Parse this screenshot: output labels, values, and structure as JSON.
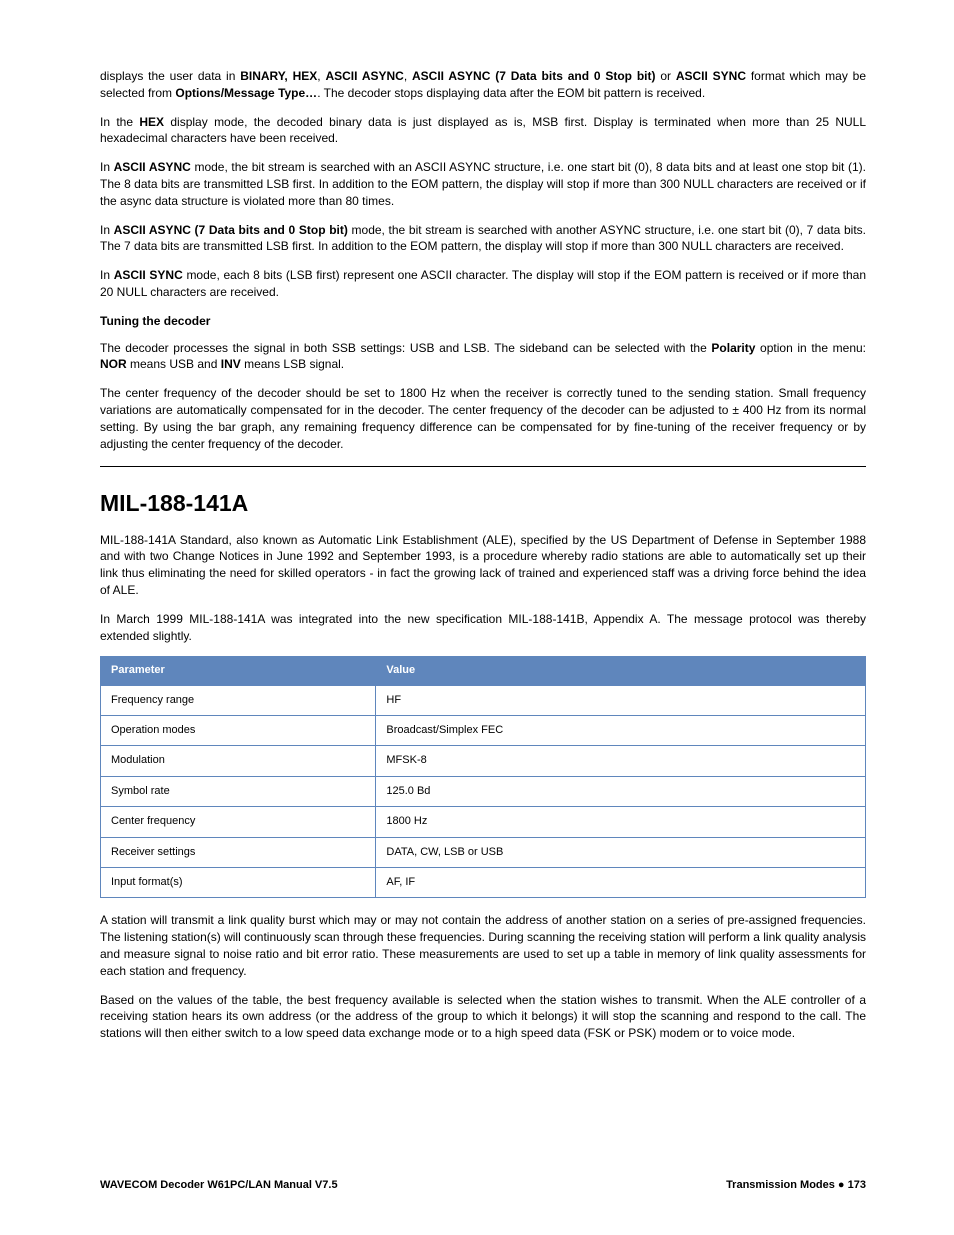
{
  "p1_pre": "displays the user data in ",
  "p1_b1": "BINARY, HEX",
  "p1_m1": ", ",
  "p1_b2": "ASCII ASYNC",
  "p1_m2": ", ",
  "p1_b3": "ASCII ASYNC (7 Data bits and 0 Stop bit)",
  "p1_m3": " or ",
  "p1_b4": "ASCII SYNC",
  "p1_m4": " format which may be selected from ",
  "p1_b5": "Options/Message Type…",
  "p1_post": ". The decoder stops displaying data after the EOM bit pattern is received.",
  "p2_pre": "In the ",
  "p2_b1": "HEX",
  "p2_post": " display mode, the decoded binary data is just displayed as is, MSB first. Display is terminated when more than 25 NULL hexadecimal characters have been received.",
  "p3_pre": "In ",
  "p3_b1": "ASCII ASYNC",
  "p3_post": " mode, the bit stream is searched with an ASCII ASYNC structure, i.e. one start bit (0), 8 data bits and at least one stop bit (1). The 8 data bits are transmitted LSB first. In addition to the EOM pattern, the display will stop if more than 300 NULL characters are received or if the async data structure is violated more than 80 times.",
  "p4_pre": "In ",
  "p4_b1": "ASCII ASYNC (7 Data bits and 0 Stop bit)",
  "p4_post": " mode, the bit stream is searched with another ASYNC structure, i.e. one start bit (0), 7 data bits. The 7 data bits are transmitted LSB first. In addition to the EOM pattern, the display will stop if more than 300 NULL characters are received.",
  "p5_pre": "In ",
  "p5_b1": "ASCII SYNC",
  "p5_post": " mode, each 8 bits (LSB first) represent one ASCII character. The display will stop if the EOM pattern is received or if more than 20 NULL characters are received.",
  "h3_tuning": "Tuning the decoder",
  "p6_pre": "The decoder processes the signal in both SSB settings: USB and LSB. The sideband can be selected with the ",
  "p6_b1": "Polarity",
  "p6_m1": " option in the menu: ",
  "p6_b2": "NOR",
  "p6_m2": " means USB and ",
  "p6_b3": "INV",
  "p6_post": " means LSB signal.",
  "p7": "The center frequency of the decoder should be set to 1800 Hz when the receiver is correctly tuned to the sending station. Small frequency variations are automatically compensated for in the decoder. The center frequency of the decoder can be adjusted to ± 400 Hz from its normal setting. By using the bar graph, any remaining frequency difference can be compensated for by fine-tuning of the receiver frequency or by adjusting the center frequency of the decoder.",
  "h2_mil": "MIL-188-141A",
  "p8": "MIL-188-141A Standard, also known as Automatic Link Establishment (ALE), specified by the US Department of Defense in September 1988 and with two Change Notices in June 1992 and September 1993, is a procedure whereby radio stations are able to automatically set up their link thus eliminating the need for skilled operators - in fact the growing lack of trained and experienced staff was a driving force behind the idea of ALE.",
  "p9": "In March 1999 MIL-188-141A was integrated into the new specification MIL-188-141B, Appendix A. The message protocol was thereby extended slightly.",
  "table": {
    "header_col1": "Parameter",
    "header_col2": "Value",
    "header_bg": "#5f86bc",
    "header_fg": "#ffffff",
    "border_color": "#5f86bc",
    "rows": [
      {
        "param": "Frequency range",
        "value": "HF"
      },
      {
        "param": "Operation modes",
        "value": "Broadcast/Simplex FEC"
      },
      {
        "param": "Modulation",
        "value": "MFSK-8"
      },
      {
        "param": "Symbol rate",
        "value": "125.0 Bd"
      },
      {
        "param": "Center frequency",
        "value": "1800 Hz"
      },
      {
        "param": "Receiver settings",
        "value": "DATA, CW, LSB or USB"
      },
      {
        "param": "Input format(s)",
        "value": "AF, IF"
      }
    ]
  },
  "p10": "A station will transmit a link quality burst which may or may not contain the address of another station on a series of pre-assigned frequencies. The listening station(s) will continuously scan through these frequencies. During scanning the receiving station will perform a link quality analysis and measure signal to noise ratio and bit error ratio. These measurements are used to set up a table in memory of link quality assessments for each station and frequency.",
  "p11": "Based on the values of the table, the best frequency available is selected when the station wishes to transmit. When the ALE controller of a receiving station hears its own address (or the address of the group to which it belongs) it will stop the scanning and respond to the call. The stations will then either switch to a low speed data exchange mode or to a high speed data (FSK or PSK) modem or to voice mode.",
  "footer_left": "WAVECOM Decoder W61PC/LAN Manual V7.5",
  "footer_right_label": "Transmission Modes",
  "footer_right_bullet": "  ●  ",
  "footer_right_page": "173"
}
